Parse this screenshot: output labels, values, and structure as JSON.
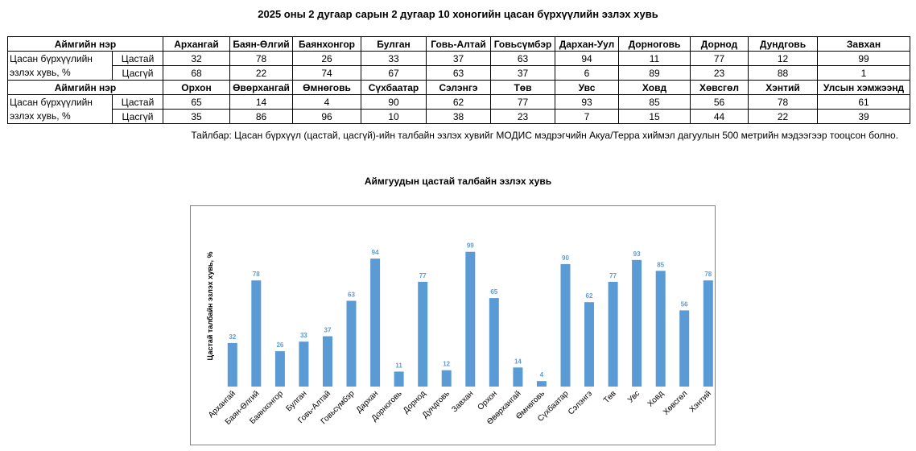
{
  "page": {
    "title": "2025 оны 2 дугаар сарын 2 дугаар 10 хоногийн цасан бүрхүүлийн эзлэх хувь",
    "note": "Тайлбар: Цасан бүрхүүл (цастай, цасгүй)-ийн талбайн эзлэх хувийг МОДИС мэдрэгчийн Акуа/Терра хиймэл дагуулын 500 метрийн мэдээгээр тооцсон болно."
  },
  "table": {
    "header_label": "Аймгийн нэр",
    "row_label_1": "Цасан бүрхүүлийн",
    "row_label_2": "эзлэх хувь, %",
    "snow_label": "Цастай",
    "nosnow_label": "Цасгүй",
    "block1": {
      "names": [
        "Архангай",
        "Баян-Өлгий",
        "Баянхонгор",
        "Булган",
        "Говь-Алтай",
        "Говьсүмбэр",
        "Дархан-Уул",
        "Дорноговь",
        "Дорнод",
        "Дундговь",
        "Завхан"
      ],
      "snow": [
        "32",
        "78",
        "26",
        "33",
        "37",
        "63",
        "94",
        "11",
        "77",
        "12",
        "99"
      ],
      "nosnow": [
        "68",
        "22",
        "74",
        "67",
        "63",
        "37",
        "6",
        "89",
        "23",
        "88",
        "1"
      ]
    },
    "block2": {
      "names": [
        "Орхон",
        "Өвөрхангай",
        "Өмнөговь",
        "Сүхбаатар",
        "Сэлэнгэ",
        "Төв",
        "Увс",
        "Ховд",
        "Хөвсгөл",
        "Хэнтий",
        "Улсын хэмжээнд"
      ],
      "snow": [
        "65",
        "14",
        "4",
        "90",
        "62",
        "77",
        "93",
        "85",
        "56",
        "78",
        "61"
      ],
      "nosnow": [
        "35",
        "86",
        "96",
        "10",
        "38",
        "23",
        "7",
        "15",
        "44",
        "22",
        "39"
      ]
    }
  },
  "chart_data": {
    "type": "bar",
    "title": "Аймгуудын цастай талбайн эзлэх хувь",
    "ylabel": "Цастай талбайн эзлэх хувь, %",
    "xlabel": "",
    "categories": [
      "Архангай",
      "Баян-Өлгий",
      "Баянхонгор",
      "Булган",
      "Говь-Алтай",
      "Говьсүмбэр",
      "Дархан",
      "Дорноговь",
      "Дорнод",
      "Дундговь",
      "Завхан",
      "Орхон",
      "Өвөрхангай",
      "Өмнөговь",
      "Сүхбаатар",
      "Сэлэнгэ",
      "Төв",
      "Увс",
      "Ховд",
      "Хөвсгөл",
      "Хэнтий"
    ],
    "values": [
      32,
      78,
      26,
      33,
      37,
      63,
      94,
      11,
      77,
      12,
      99,
      65,
      14,
      4,
      90,
      62,
      77,
      93,
      85,
      56,
      78
    ],
    "ylim": [
      0,
      100
    ],
    "grid": false,
    "data_labels": true,
    "bar_color": "#5B9BD5",
    "label_color": "#5B9BD5"
  }
}
